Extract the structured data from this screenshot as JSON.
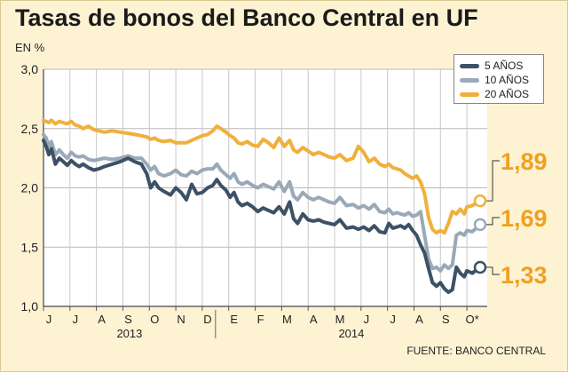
{
  "title": "Tasas de bonos del Banco Central en UF",
  "unit_label": "EN %",
  "source": "FUENTE: BANCO CENTRAL",
  "colors": {
    "background": "#fdf3d3",
    "plot_bg": "#ffffff",
    "5y": "#3d5166",
    "10y": "#9aa9b8",
    "20y": "#f0b03c"
  },
  "chart_data": {
    "type": "line",
    "title": "Tasas de bonos del Banco Central en UF",
    "ylabel": "EN %",
    "xlabel": "",
    "ylim": [
      1.0,
      3.0
    ],
    "y_ticks": [
      "1,0",
      "1,5",
      "2,0",
      "2,5",
      "3,0"
    ],
    "x_months": [
      "J",
      "J",
      "A",
      "S",
      "O",
      "N",
      "D",
      "E",
      "F",
      "M",
      "A",
      "M",
      "J",
      "J",
      "A",
      "S",
      "O*"
    ],
    "x_years": [
      "2013",
      "2014"
    ],
    "grid": true,
    "legend_position": "top-right",
    "series": [
      {
        "key": "5y",
        "name": "5 AÑOS",
        "color": "#3d5166",
        "end_label": "1,33",
        "x": [
          0.0,
          0.1,
          0.2,
          0.3,
          0.45,
          0.6,
          0.75,
          0.9,
          1.05,
          1.2,
          1.35,
          1.5,
          1.7,
          1.9,
          2.1,
          2.3,
          2.6,
          2.9,
          3.2,
          3.45,
          3.7,
          3.9,
          4.05,
          4.2,
          4.35,
          4.55,
          4.8,
          5.0,
          5.2,
          5.4,
          5.6,
          5.8,
          6.0,
          6.2,
          6.4,
          6.55,
          6.7,
          6.9,
          7.05,
          7.2,
          7.35,
          7.5,
          7.7,
          7.9,
          8.1,
          8.3,
          8.5,
          8.7,
          8.9,
          9.1,
          9.3,
          9.45,
          9.6,
          9.8,
          10.0,
          10.2,
          10.4,
          10.6,
          10.8,
          11.0,
          11.2,
          11.45,
          11.7,
          11.9,
          12.1,
          12.3,
          12.5,
          12.7,
          12.9,
          13.05,
          13.2,
          13.35,
          13.5,
          13.65,
          13.8,
          13.95,
          14.1,
          14.25,
          14.4,
          14.55,
          14.7,
          14.85,
          15.0,
          15.15,
          15.3,
          15.45,
          15.6,
          15.75,
          15.9,
          16.0,
          16.2,
          16.5
        ],
        "values": [
          2.4,
          2.35,
          2.28,
          2.33,
          2.2,
          2.25,
          2.22,
          2.19,
          2.23,
          2.2,
          2.18,
          2.2,
          2.17,
          2.15,
          2.16,
          2.18,
          2.2,
          2.22,
          2.25,
          2.22,
          2.2,
          2.12,
          2.0,
          2.05,
          2.0,
          1.97,
          1.94,
          2.0,
          1.96,
          1.9,
          2.03,
          1.95,
          1.96,
          2.0,
          2.02,
          2.07,
          2.02,
          1.98,
          1.92,
          1.96,
          1.88,
          1.85,
          1.87,
          1.84,
          1.8,
          1.83,
          1.81,
          1.79,
          1.84,
          1.78,
          1.88,
          1.74,
          1.7,
          1.78,
          1.73,
          1.72,
          1.73,
          1.71,
          1.7,
          1.69,
          1.73,
          1.66,
          1.67,
          1.65,
          1.67,
          1.64,
          1.68,
          1.63,
          1.62,
          1.7,
          1.66,
          1.67,
          1.68,
          1.66,
          1.69,
          1.64,
          1.6,
          1.52,
          1.45,
          1.32,
          1.2,
          1.17,
          1.2,
          1.15,
          1.12,
          1.14,
          1.33,
          1.28,
          1.25,
          1.3,
          1.28,
          1.33
        ]
      },
      {
        "key": "10y",
        "name": "10 AÑOS",
        "color": "#9aa9b8",
        "end_label": "1,69",
        "x": [
          0.0,
          0.1,
          0.2,
          0.3,
          0.45,
          0.6,
          0.75,
          0.9,
          1.05,
          1.2,
          1.35,
          1.5,
          1.7,
          1.9,
          2.1,
          2.3,
          2.6,
          2.9,
          3.2,
          3.45,
          3.7,
          3.9,
          4.05,
          4.2,
          4.35,
          4.55,
          4.8,
          5.0,
          5.2,
          5.4,
          5.6,
          5.8,
          6.0,
          6.2,
          6.4,
          6.55,
          6.7,
          6.9,
          7.05,
          7.2,
          7.35,
          7.5,
          7.7,
          7.9,
          8.1,
          8.3,
          8.5,
          8.7,
          8.9,
          9.1,
          9.3,
          9.45,
          9.6,
          9.8,
          10.0,
          10.2,
          10.4,
          10.6,
          10.8,
          11.0,
          11.2,
          11.45,
          11.7,
          11.9,
          12.1,
          12.3,
          12.5,
          12.7,
          12.9,
          13.05,
          13.2,
          13.35,
          13.5,
          13.65,
          13.8,
          13.95,
          14.1,
          14.25,
          14.4,
          14.55,
          14.7,
          14.85,
          15.0,
          15.15,
          15.3,
          15.45,
          15.6,
          15.75,
          15.9,
          16.0,
          16.2,
          16.5
        ],
        "values": [
          2.45,
          2.42,
          2.35,
          2.39,
          2.28,
          2.32,
          2.28,
          2.25,
          2.3,
          2.27,
          2.26,
          2.27,
          2.24,
          2.23,
          2.24,
          2.25,
          2.24,
          2.25,
          2.27,
          2.25,
          2.25,
          2.2,
          2.15,
          2.18,
          2.12,
          2.1,
          2.12,
          2.15,
          2.11,
          2.1,
          2.14,
          2.12,
          2.15,
          2.16,
          2.16,
          2.2,
          2.15,
          2.11,
          2.08,
          2.12,
          2.05,
          2.03,
          2.05,
          2.02,
          2.0,
          2.03,
          2.01,
          1.99,
          2.05,
          1.97,
          2.05,
          1.93,
          1.9,
          1.96,
          1.92,
          1.9,
          1.92,
          1.9,
          1.88,
          1.87,
          1.92,
          1.85,
          1.86,
          1.83,
          1.85,
          1.82,
          1.86,
          1.8,
          1.79,
          1.82,
          1.78,
          1.79,
          1.78,
          1.77,
          1.79,
          1.76,
          1.77,
          1.8,
          1.6,
          1.4,
          1.32,
          1.33,
          1.3,
          1.35,
          1.32,
          1.35,
          1.6,
          1.62,
          1.6,
          1.64,
          1.63,
          1.69
        ]
      },
      {
        "key": "20y",
        "name": "20 AÑOS",
        "color": "#f0b03c",
        "end_label": "1,89",
        "x": [
          0.0,
          0.1,
          0.2,
          0.3,
          0.45,
          0.6,
          0.75,
          0.9,
          1.05,
          1.2,
          1.35,
          1.5,
          1.7,
          1.9,
          2.1,
          2.3,
          2.6,
          2.9,
          3.2,
          3.45,
          3.7,
          3.9,
          4.05,
          4.2,
          4.35,
          4.55,
          4.8,
          5.0,
          5.2,
          5.4,
          5.6,
          5.8,
          6.0,
          6.2,
          6.4,
          6.55,
          6.7,
          6.9,
          7.05,
          7.2,
          7.35,
          7.5,
          7.7,
          7.9,
          8.1,
          8.3,
          8.5,
          8.7,
          8.9,
          9.1,
          9.3,
          9.45,
          9.6,
          9.8,
          10.0,
          10.2,
          10.4,
          10.6,
          10.8,
          11.0,
          11.2,
          11.45,
          11.7,
          11.9,
          12.1,
          12.3,
          12.5,
          12.7,
          12.9,
          13.05,
          13.2,
          13.35,
          13.5,
          13.65,
          13.8,
          13.95,
          14.1,
          14.25,
          14.4,
          14.55,
          14.7,
          14.85,
          15.0,
          15.15,
          15.3,
          15.45,
          15.6,
          15.75,
          15.9,
          16.0,
          16.2,
          16.5
        ],
        "values": [
          2.57,
          2.56,
          2.55,
          2.57,
          2.54,
          2.56,
          2.55,
          2.54,
          2.56,
          2.53,
          2.52,
          2.5,
          2.52,
          2.49,
          2.48,
          2.47,
          2.48,
          2.47,
          2.46,
          2.45,
          2.44,
          2.43,
          2.41,
          2.42,
          2.4,
          2.39,
          2.4,
          2.38,
          2.38,
          2.38,
          2.4,
          2.42,
          2.44,
          2.45,
          2.48,
          2.52,
          2.5,
          2.47,
          2.44,
          2.42,
          2.38,
          2.37,
          2.39,
          2.36,
          2.35,
          2.41,
          2.38,
          2.34,
          2.42,
          2.35,
          2.4,
          2.32,
          2.3,
          2.34,
          2.31,
          2.28,
          2.3,
          2.28,
          2.26,
          2.25,
          2.28,
          2.23,
          2.25,
          2.35,
          2.3,
          2.22,
          2.25,
          2.2,
          2.18,
          2.2,
          2.17,
          2.16,
          2.15,
          2.12,
          2.1,
          2.08,
          2.1,
          2.05,
          1.95,
          1.75,
          1.65,
          1.62,
          1.64,
          1.62,
          1.7,
          1.8,
          1.78,
          1.82,
          1.78,
          1.84,
          1.85,
          1.89
        ]
      }
    ]
  }
}
